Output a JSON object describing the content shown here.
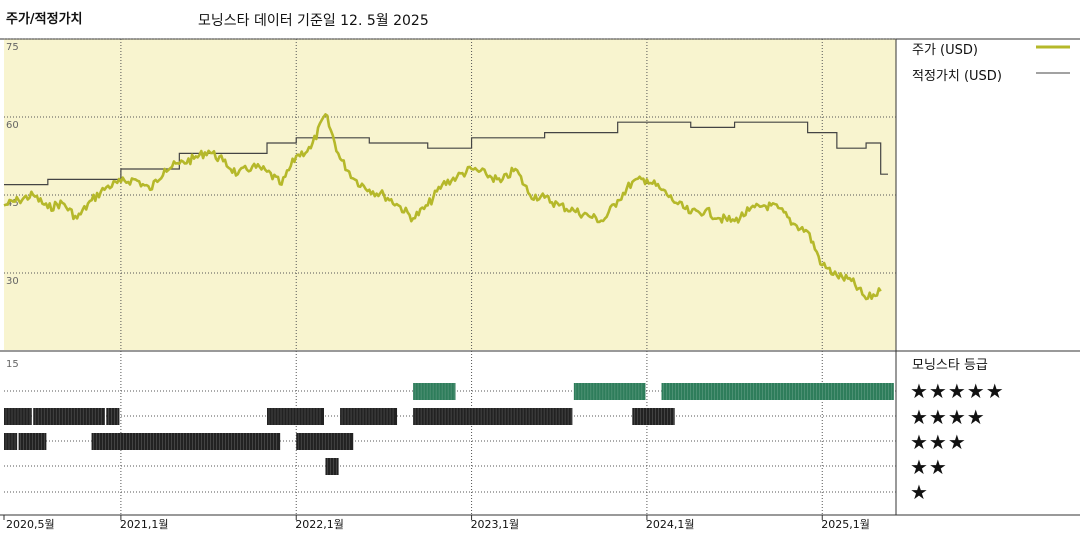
{
  "header": {
    "title": "주가/적정가치",
    "subtitle": "모닝스타 데이터 기준일 12. 5월 2025"
  },
  "legend": {
    "price_label": "주가 (USD)",
    "fair_label": "적정가치 (USD)"
  },
  "rating_panel": {
    "title": "모닝스타 등급",
    "stars": [
      "★★★★★",
      "★★★★",
      "★★★",
      "★★",
      "★"
    ]
  },
  "colors": {
    "price": "#b5b82a",
    "fair": "#444444",
    "panel_bg": "#f8f4cf",
    "rating_5": "#2e7d5b",
    "rating_other": "#222222"
  },
  "chart_data": {
    "type": "line",
    "x_axis": {
      "start": "2020-05",
      "end": "2025-05",
      "tick_labels": [
        "2020,5월",
        "2021,1월",
        "2022,1월",
        "2023,1월",
        "2024,1월",
        "2025,1월"
      ],
      "tick_dates": [
        "2020-05",
        "2021-01",
        "2022-01",
        "2023-01",
        "2024-01",
        "2025-01"
      ]
    },
    "y_axis": {
      "min": 15,
      "max": 75,
      "ticks": [
        75,
        60,
        45,
        30,
        15
      ],
      "grid": true
    },
    "series": [
      {
        "name": "주가 (USD)",
        "points": [
          [
            "2020-05",
            43
          ],
          [
            "2020-06",
            44
          ],
          [
            "2020-07",
            45
          ],
          [
            "2020-08",
            42.5
          ],
          [
            "2020-09",
            43.5
          ],
          [
            "2020-10",
            40.5
          ],
          [
            "2020-11",
            44
          ],
          [
            "2020-12",
            46.5
          ],
          [
            "2021-01",
            47.5
          ],
          [
            "2021-02",
            48
          ],
          [
            "2021-03",
            46
          ],
          [
            "2021-04",
            50
          ],
          [
            "2021-05",
            51
          ],
          [
            "2021-06",
            52
          ],
          [
            "2021-07",
            53.5
          ],
          [
            "2021-08",
            51.5
          ],
          [
            "2021-09",
            49
          ],
          [
            "2021-10",
            50.5
          ],
          [
            "2021-11",
            49.5
          ],
          [
            "2021-12",
            47
          ],
          [
            "2022-01",
            52.5
          ],
          [
            "2022-02",
            54
          ],
          [
            "2022-03",
            60.5
          ],
          [
            "2022-04",
            52
          ],
          [
            "2022-05",
            48
          ],
          [
            "2022-06",
            46
          ],
          [
            "2022-07",
            45
          ],
          [
            "2022-08",
            43
          ],
          [
            "2022-09",
            40.5
          ],
          [
            "2022-10",
            43
          ],
          [
            "2022-11",
            47
          ],
          [
            "2022-12",
            48.5
          ],
          [
            "2023-01",
            50
          ],
          [
            "2023-02",
            49
          ],
          [
            "2023-03",
            47.5
          ],
          [
            "2023-04",
            50
          ],
          [
            "2023-05",
            45
          ],
          [
            "2023-06",
            44.5
          ],
          [
            "2023-07",
            43
          ],
          [
            "2023-08",
            42
          ],
          [
            "2023-09",
            41
          ],
          [
            "2023-10",
            40
          ],
          [
            "2023-11",
            44
          ],
          [
            "2023-12",
            47.5
          ],
          [
            "2024-01",
            48
          ],
          [
            "2024-02",
            46
          ],
          [
            "2024-03",
            43.5
          ],
          [
            "2024-04",
            41.5
          ],
          [
            "2024-05",
            42
          ],
          [
            "2024-06",
            40.5
          ],
          [
            "2024-07",
            40
          ],
          [
            "2024-08",
            42
          ],
          [
            "2024-09",
            43
          ],
          [
            "2024-10",
            42.5
          ],
          [
            "2024-11",
            39.5
          ],
          [
            "2024-12",
            38
          ],
          [
            "2025-01",
            31.5
          ],
          [
            "2025-02",
            29.5
          ],
          [
            "2025-03",
            28.5
          ],
          [
            "2025-04",
            25
          ],
          [
            "2025-05",
            26.5
          ]
        ]
      },
      {
        "name": "적정가치 (USD)",
        "step": true,
        "points": [
          [
            "2020-05",
            47
          ],
          [
            "2020-08",
            48
          ],
          [
            "2021-01",
            50
          ],
          [
            "2021-05",
            53
          ],
          [
            "2021-11",
            55
          ],
          [
            "2022-01",
            56
          ],
          [
            "2022-06",
            55
          ],
          [
            "2022-10",
            54
          ],
          [
            "2023-01",
            56
          ],
          [
            "2023-06",
            57
          ],
          [
            "2023-11",
            59
          ],
          [
            "2024-04",
            58
          ],
          [
            "2024-07",
            59
          ],
          [
            "2024-12",
            57
          ],
          [
            "2025-02",
            54
          ],
          [
            "2025-04",
            55
          ],
          [
            "2025-05",
            49
          ]
        ]
      }
    ],
    "rating_history": [
      {
        "stars": 5,
        "periods": [
          [
            "2022-09",
            "2022-11"
          ],
          [
            "2023-08",
            "2023-12"
          ],
          [
            "2024-02",
            "2025-05"
          ]
        ]
      },
      {
        "stars": 4,
        "periods": [
          [
            "2020-05",
            "2020-06"
          ],
          [
            "2020-07",
            "2020-11"
          ],
          [
            "2020-12",
            "2020-12"
          ],
          [
            "2021-11",
            "2022-02"
          ],
          [
            "2022-04",
            "2022-07"
          ],
          [
            "2022-09",
            "2023-07"
          ],
          [
            "2023-12",
            "2024-02"
          ]
        ]
      },
      {
        "stars": 3,
        "periods": [
          [
            "2020-05",
            "2020-05"
          ],
          [
            "2020-06",
            "2020-07"
          ],
          [
            "2020-11",
            "2020-11"
          ],
          [
            "2020-11",
            "2021-11"
          ],
          [
            "2022-01",
            "2022-04"
          ]
        ]
      },
      {
        "stars": 2,
        "periods": [
          [
            "2022-03",
            "2022-03"
          ]
        ]
      },
      {
        "stars": 1,
        "periods": []
      }
    ]
  }
}
